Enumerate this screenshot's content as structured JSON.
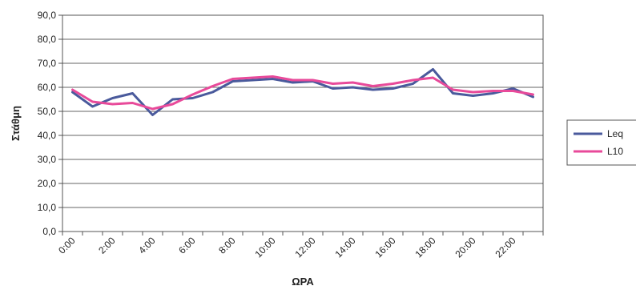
{
  "chart_data": {
    "type": "line",
    "title": "",
    "xlabel": "ΩΡΑ",
    "ylabel": "Στάθμη",
    "ylim": [
      0,
      90
    ],
    "yticks": [
      "0,0",
      "10,0",
      "20,0",
      "30,0",
      "40,0",
      "50,0",
      "60,0",
      "70,0",
      "80,0",
      "90,0"
    ],
    "x": [
      "0:00",
      "1:00",
      "2:00",
      "3:00",
      "4:00",
      "5:00",
      "6:00",
      "7:00",
      "8:00",
      "9:00",
      "10:00",
      "11:00",
      "12:00",
      "13:00",
      "14:00",
      "15:00",
      "16:00",
      "17:00",
      "18:00",
      "19:00",
      "20:00",
      "21:00",
      "22:00",
      "23:00"
    ],
    "xtick_labels": [
      "0:00",
      "",
      "2:00",
      "",
      "4:00",
      "",
      "6:00",
      "",
      "8:00",
      "",
      "10:00",
      "",
      "12:00",
      "",
      "14:00",
      "",
      "16:00",
      "",
      "18:00",
      "",
      "20:00",
      "",
      "22:00",
      ""
    ],
    "grid": true,
    "legend_position": "right",
    "series": [
      {
        "name": "Leq",
        "color": "#4a5a9c",
        "values": [
          58.0,
          52.0,
          55.5,
          57.5,
          48.5,
          55.0,
          55.5,
          58.0,
          62.5,
          63.0,
          63.5,
          62.0,
          62.5,
          59.5,
          60.0,
          59.0,
          59.5,
          61.5,
          67.5,
          57.5,
          56.5,
          57.5,
          59.5,
          56.0
        ]
      },
      {
        "name": "L10",
        "color": "#e84a9a",
        "values": [
          59.0,
          54.0,
          53.0,
          53.5,
          51.0,
          53.0,
          57.0,
          60.5,
          63.5,
          64.0,
          64.5,
          63.0,
          63.0,
          61.5,
          62.0,
          60.5,
          61.5,
          63.0,
          64.0,
          59.0,
          58.0,
          58.5,
          58.5,
          57.0
        ]
      }
    ]
  }
}
